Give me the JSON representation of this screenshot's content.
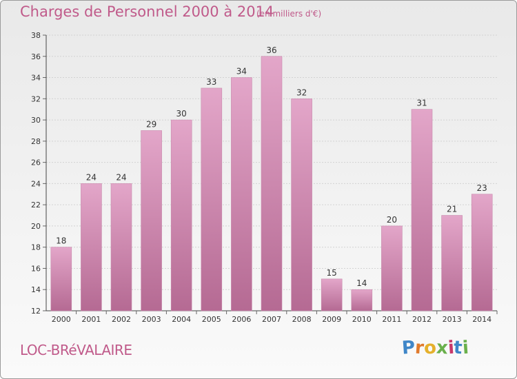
{
  "header": {
    "title": "Charges de Personnel 2000 à 2014",
    "subtitle": "(en milliers d'€)"
  },
  "footer": {
    "commune": "LOC-BRéVALAIRE",
    "logo_text": "Proxiti"
  },
  "colors": {
    "bar_top": "#e3a6c9",
    "bar_bottom": "#b56a93",
    "text_accent": "#c05a8a"
  },
  "chart_data": {
    "type": "bar",
    "title": "Charges de Personnel 2000 à 2014",
    "subtitle": "(en milliers d'€)",
    "categories": [
      "2000",
      "2001",
      "2002",
      "2003",
      "2004",
      "2005",
      "2006",
      "2007",
      "2008",
      "2009",
      "2010",
      "2011",
      "2012",
      "2013",
      "2014"
    ],
    "values": [
      18,
      24,
      24,
      29,
      30,
      33,
      34,
      36,
      32,
      15,
      14,
      20,
      31,
      21,
      23
    ],
    "ylim": [
      12,
      38
    ],
    "yticks": [
      12,
      14,
      16,
      18,
      20,
      22,
      24,
      26,
      28,
      30,
      32,
      34,
      36,
      38
    ],
    "grid": true,
    "xlabel": "",
    "ylabel": ""
  }
}
